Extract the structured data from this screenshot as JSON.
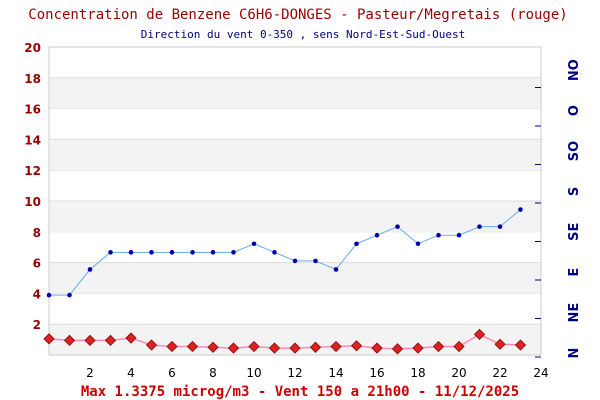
{
  "chart_data": {
    "type": "line",
    "title": "Concentration de Benzene C6H6-DONGES - Pasteur/Megretais (rouge)",
    "subtitle": "Direction du vent 0-350 , sens Nord-Est-Sud-Ouest",
    "footer": "Max 1.3375 microg/m3 - Vent 150  a 21h00 - 11/12/2025",
    "xlim": [
      0,
      24
    ],
    "ylim": [
      0,
      20
    ],
    "x_ticks": [
      "2",
      "4",
      "6",
      "8",
      "10",
      "12",
      "14",
      "16",
      "18",
      "20",
      "22",
      "24"
    ],
    "y_ticks": [
      "2",
      "4",
      "6",
      "8",
      "10",
      "12",
      "14",
      "16",
      "18",
      "20"
    ],
    "wind_labels": [
      "N",
      "NE",
      "E",
      "SE",
      "S",
      "SO",
      "O",
      "NO"
    ],
    "wind_range": [
      0,
      360
    ],
    "x": [
      0,
      1,
      2,
      3,
      4,
      5,
      6,
      7,
      8,
      9,
      10,
      11,
      12,
      13,
      14,
      15,
      16,
      17,
      18,
      19,
      20,
      21,
      22,
      23
    ],
    "series": [
      {
        "name": "Benzene",
        "color": "#cc0000",
        "line_color": "#ff88bb",
        "values": [
          1.05,
          0.95,
          0.95,
          0.95,
          1.1,
          0.65,
          0.55,
          0.55,
          0.5,
          0.45,
          0.55,
          0.45,
          0.45,
          0.5,
          0.55,
          0.6,
          0.45,
          0.4,
          0.45,
          0.55,
          0.55,
          1.3375,
          0.7,
          0.65
        ]
      },
      {
        "name": "Direction du vent",
        "color": "#0000cc",
        "line_color": "#66aaee",
        "values": [
          70,
          70,
          100,
          120,
          120,
          120,
          120,
          120,
          120,
          120,
          130,
          120,
          110,
          110,
          100,
          130,
          140,
          150,
          130,
          140,
          140,
          150,
          150,
          170
        ]
      }
    ]
  }
}
